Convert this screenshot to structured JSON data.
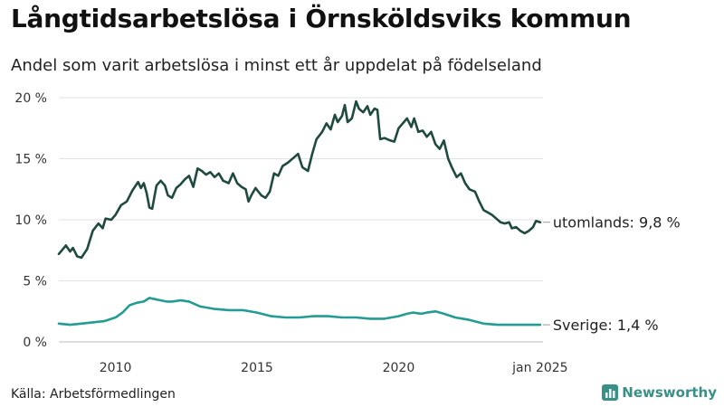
{
  "title": "Långtidsarbetslösa i Örnsköldsviks kommun",
  "subtitle": "Andel som varit arbetslösa i minst ett år uppdelat på födelseland",
  "source": "Källa: Arbetsförmedlingen",
  "brand": "Newsworthy",
  "chart_data": {
    "type": "line",
    "title": "Långtidsarbetslösa i Örnsköldsviks kommun",
    "subtitle": "Andel som varit arbetslösa i minst ett år uppdelat på födelseland",
    "y_ticks": [
      0,
      5,
      10,
      15,
      20
    ],
    "y_tick_labels": [
      "0 %",
      "5 %",
      "10 %",
      "15 %",
      "20 %"
    ],
    "x_ticks": [
      2010,
      2015,
      2020,
      2025
    ],
    "x_tick_labels": [
      "2010",
      "2015",
      "2020",
      "jan 2025"
    ],
    "xlim": [
      2008.0,
      2025.1
    ],
    "ylim": [
      0,
      20
    ],
    "grid": "horizontal",
    "series": [
      {
        "name": "utomlands",
        "end_label": "utomlands: 9,8 %",
        "color": "#1f4a40",
        "points": [
          [
            2008.0,
            7.2
          ],
          [
            2008.25,
            7.9
          ],
          [
            2008.4,
            7.4
          ],
          [
            2008.5,
            7.7
          ],
          [
            2008.65,
            7.0
          ],
          [
            2008.8,
            6.9
          ],
          [
            2009.0,
            7.6
          ],
          [
            2009.2,
            9.1
          ],
          [
            2009.4,
            9.7
          ],
          [
            2009.55,
            9.3
          ],
          [
            2009.65,
            10.1
          ],
          [
            2009.85,
            10.0
          ],
          [
            2010.0,
            10.4
          ],
          [
            2010.2,
            11.2
          ],
          [
            2010.4,
            11.5
          ],
          [
            2010.6,
            12.4
          ],
          [
            2010.8,
            13.1
          ],
          [
            2010.9,
            12.6
          ],
          [
            2011.0,
            13.0
          ],
          [
            2011.1,
            12.2
          ],
          [
            2011.2,
            11.0
          ],
          [
            2011.3,
            10.9
          ],
          [
            2011.45,
            12.8
          ],
          [
            2011.6,
            13.2
          ],
          [
            2011.75,
            12.8
          ],
          [
            2011.85,
            12.0
          ],
          [
            2012.0,
            11.8
          ],
          [
            2012.15,
            12.6
          ],
          [
            2012.3,
            12.9
          ],
          [
            2012.45,
            13.3
          ],
          [
            2012.6,
            13.6
          ],
          [
            2012.75,
            12.7
          ],
          [
            2012.9,
            14.2
          ],
          [
            2013.05,
            14.0
          ],
          [
            2013.2,
            13.7
          ],
          [
            2013.35,
            13.9
          ],
          [
            2013.5,
            13.5
          ],
          [
            2013.65,
            13.8
          ],
          [
            2013.8,
            13.2
          ],
          [
            2014.0,
            13.0
          ],
          [
            2014.15,
            13.8
          ],
          [
            2014.3,
            13.0
          ],
          [
            2014.45,
            12.7
          ],
          [
            2014.6,
            12.5
          ],
          [
            2014.7,
            11.5
          ],
          [
            2014.8,
            12.0
          ],
          [
            2014.95,
            12.6
          ],
          [
            2015.15,
            12.0
          ],
          [
            2015.3,
            11.8
          ],
          [
            2015.45,
            12.3
          ],
          [
            2015.6,
            13.8
          ],
          [
            2015.75,
            13.6
          ],
          [
            2015.9,
            14.4
          ],
          [
            2016.1,
            14.7
          ],
          [
            2016.3,
            15.1
          ],
          [
            2016.45,
            15.4
          ],
          [
            2016.6,
            14.3
          ],
          [
            2016.8,
            14.0
          ],
          [
            2016.95,
            15.4
          ],
          [
            2017.1,
            16.6
          ],
          [
            2017.3,
            17.2
          ],
          [
            2017.45,
            17.9
          ],
          [
            2017.6,
            17.4
          ],
          [
            2017.75,
            18.6
          ],
          [
            2017.85,
            18.0
          ],
          [
            2018.0,
            18.5
          ],
          [
            2018.1,
            19.4
          ],
          [
            2018.2,
            18.0
          ],
          [
            2018.35,
            18.3
          ],
          [
            2018.5,
            19.7
          ],
          [
            2018.6,
            19.1
          ],
          [
            2018.75,
            18.8
          ],
          [
            2018.9,
            19.3
          ],
          [
            2019.0,
            18.6
          ],
          [
            2019.15,
            19.1
          ],
          [
            2019.25,
            19.0
          ],
          [
            2019.35,
            16.6
          ],
          [
            2019.5,
            16.7
          ],
          [
            2019.7,
            16.5
          ],
          [
            2019.85,
            16.4
          ],
          [
            2020.0,
            17.5
          ],
          [
            2020.15,
            17.9
          ],
          [
            2020.3,
            18.3
          ],
          [
            2020.45,
            17.6
          ],
          [
            2020.55,
            18.3
          ],
          [
            2020.7,
            17.2
          ],
          [
            2020.85,
            17.3
          ],
          [
            2021.0,
            16.8
          ],
          [
            2021.15,
            17.2
          ],
          [
            2021.3,
            16.2
          ],
          [
            2021.45,
            15.8
          ],
          [
            2021.6,
            16.5
          ],
          [
            2021.75,
            15.0
          ],
          [
            2021.9,
            14.2
          ],
          [
            2022.05,
            13.5
          ],
          [
            2022.2,
            13.8
          ],
          [
            2022.35,
            13.0
          ],
          [
            2022.5,
            12.5
          ],
          [
            2022.7,
            12.3
          ],
          [
            2022.85,
            11.5
          ],
          [
            2023.0,
            10.8
          ],
          [
            2023.15,
            10.6
          ],
          [
            2023.3,
            10.4
          ],
          [
            2023.45,
            10.1
          ],
          [
            2023.6,
            9.8
          ],
          [
            2023.75,
            9.7
          ],
          [
            2023.9,
            9.8
          ],
          [
            2024.0,
            9.3
          ],
          [
            2024.15,
            9.4
          ],
          [
            2024.3,
            9.1
          ],
          [
            2024.45,
            8.9
          ],
          [
            2024.6,
            9.1
          ],
          [
            2024.75,
            9.4
          ],
          [
            2024.85,
            9.9
          ],
          [
            2025.0,
            9.8
          ]
        ]
      },
      {
        "name": "Sverige",
        "end_label": "Sverige: 1,4 %",
        "color": "#249c94",
        "points": [
          [
            2008.0,
            1.5
          ],
          [
            2008.4,
            1.4
          ],
          [
            2008.8,
            1.5
          ],
          [
            2009.2,
            1.6
          ],
          [
            2009.6,
            1.7
          ],
          [
            2010.0,
            2.0
          ],
          [
            2010.25,
            2.4
          ],
          [
            2010.5,
            3.0
          ],
          [
            2010.75,
            3.2
          ],
          [
            2011.0,
            3.3
          ],
          [
            2011.2,
            3.6
          ],
          [
            2011.4,
            3.5
          ],
          [
            2011.6,
            3.4
          ],
          [
            2011.8,
            3.3
          ],
          [
            2012.0,
            3.3
          ],
          [
            2012.3,
            3.4
          ],
          [
            2012.6,
            3.3
          ],
          [
            2013.0,
            2.9
          ],
          [
            2013.5,
            2.7
          ],
          [
            2014.0,
            2.6
          ],
          [
            2014.5,
            2.6
          ],
          [
            2015.0,
            2.4
          ],
          [
            2015.5,
            2.1
          ],
          [
            2016.0,
            2.0
          ],
          [
            2016.5,
            2.0
          ],
          [
            2017.0,
            2.1
          ],
          [
            2017.5,
            2.1
          ],
          [
            2018.0,
            2.0
          ],
          [
            2018.5,
            2.0
          ],
          [
            2019.0,
            1.9
          ],
          [
            2019.5,
            1.9
          ],
          [
            2020.0,
            2.1
          ],
          [
            2020.3,
            2.3
          ],
          [
            2020.5,
            2.4
          ],
          [
            2020.8,
            2.3
          ],
          [
            2021.0,
            2.4
          ],
          [
            2021.3,
            2.5
          ],
          [
            2021.6,
            2.3
          ],
          [
            2022.0,
            2.0
          ],
          [
            2022.5,
            1.8
          ],
          [
            2023.0,
            1.5
          ],
          [
            2023.5,
            1.4
          ],
          [
            2024.0,
            1.4
          ],
          [
            2024.5,
            1.4
          ],
          [
            2025.0,
            1.4
          ]
        ]
      }
    ]
  }
}
